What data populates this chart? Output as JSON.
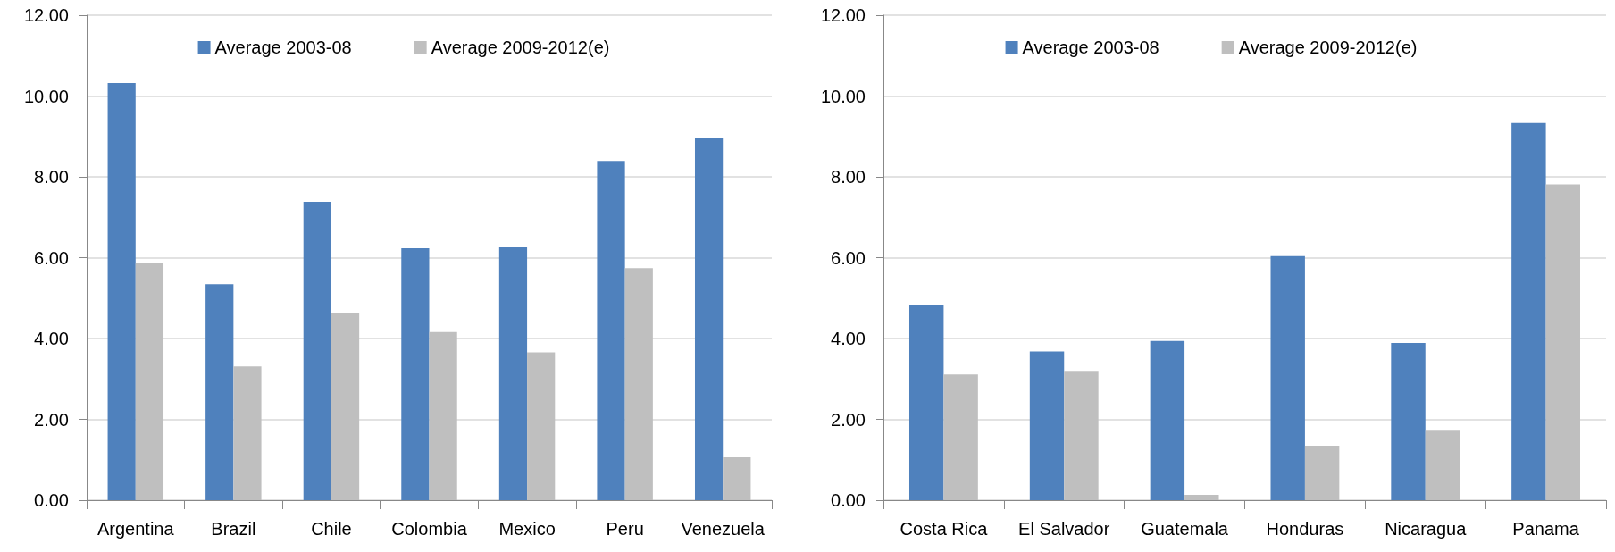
{
  "chart_data": [
    {
      "type": "bar",
      "categories": [
        "Argentina",
        "Brazil",
        "Chile",
        "Colombia",
        "Mexico",
        "Peru",
        "Venezuela"
      ],
      "series": [
        {
          "name": "Average 2003-08",
          "color": "#4f81bd",
          "values": [
            10.32,
            5.34,
            7.38,
            6.23,
            6.27,
            8.39,
            8.96
          ]
        },
        {
          "name": "Average 2009-2012(e)",
          "color": "#bfbfbf",
          "values": [
            5.87,
            3.31,
            4.64,
            4.16,
            3.66,
            5.74,
            1.06
          ]
        }
      ],
      "ylim": [
        0,
        12
      ],
      "yticks": [
        {
          "value": 0,
          "label": "0.00"
        },
        {
          "value": 2,
          "label": "2.00"
        },
        {
          "value": 4,
          "label": "4.00"
        },
        {
          "value": 6,
          "label": "6.00"
        },
        {
          "value": 8,
          "label": "8.00"
        },
        {
          "value": 10,
          "label": "10.00"
        },
        {
          "value": 12,
          "label": "12.00"
        }
      ],
      "grid": "y",
      "legend": "top"
    },
    {
      "type": "bar",
      "categories": [
        "Costa Rica",
        "El Salvador",
        "Guatemala",
        "Honduras",
        "Nicaragua",
        "Panama"
      ],
      "series": [
        {
          "name": "Average 2003-08",
          "color": "#4f81bd",
          "values": [
            4.82,
            3.68,
            3.94,
            6.04,
            3.89,
            9.33
          ]
        },
        {
          "name": "Average 2009-2012(e)",
          "color": "#bfbfbf",
          "values": [
            3.11,
            3.2,
            0.13,
            1.35,
            1.74,
            7.81
          ]
        }
      ],
      "ylim": [
        0,
        12
      ],
      "yticks": [
        {
          "value": 0,
          "label": "0.00"
        },
        {
          "value": 2,
          "label": "2.00"
        },
        {
          "value": 4,
          "label": "4.00"
        },
        {
          "value": 6,
          "label": "6.00"
        },
        {
          "value": 8,
          "label": "8.00"
        },
        {
          "value": 10,
          "label": "10.00"
        },
        {
          "value": 12,
          "label": "12.00"
        }
      ],
      "grid": "y",
      "legend": "top"
    }
  ]
}
